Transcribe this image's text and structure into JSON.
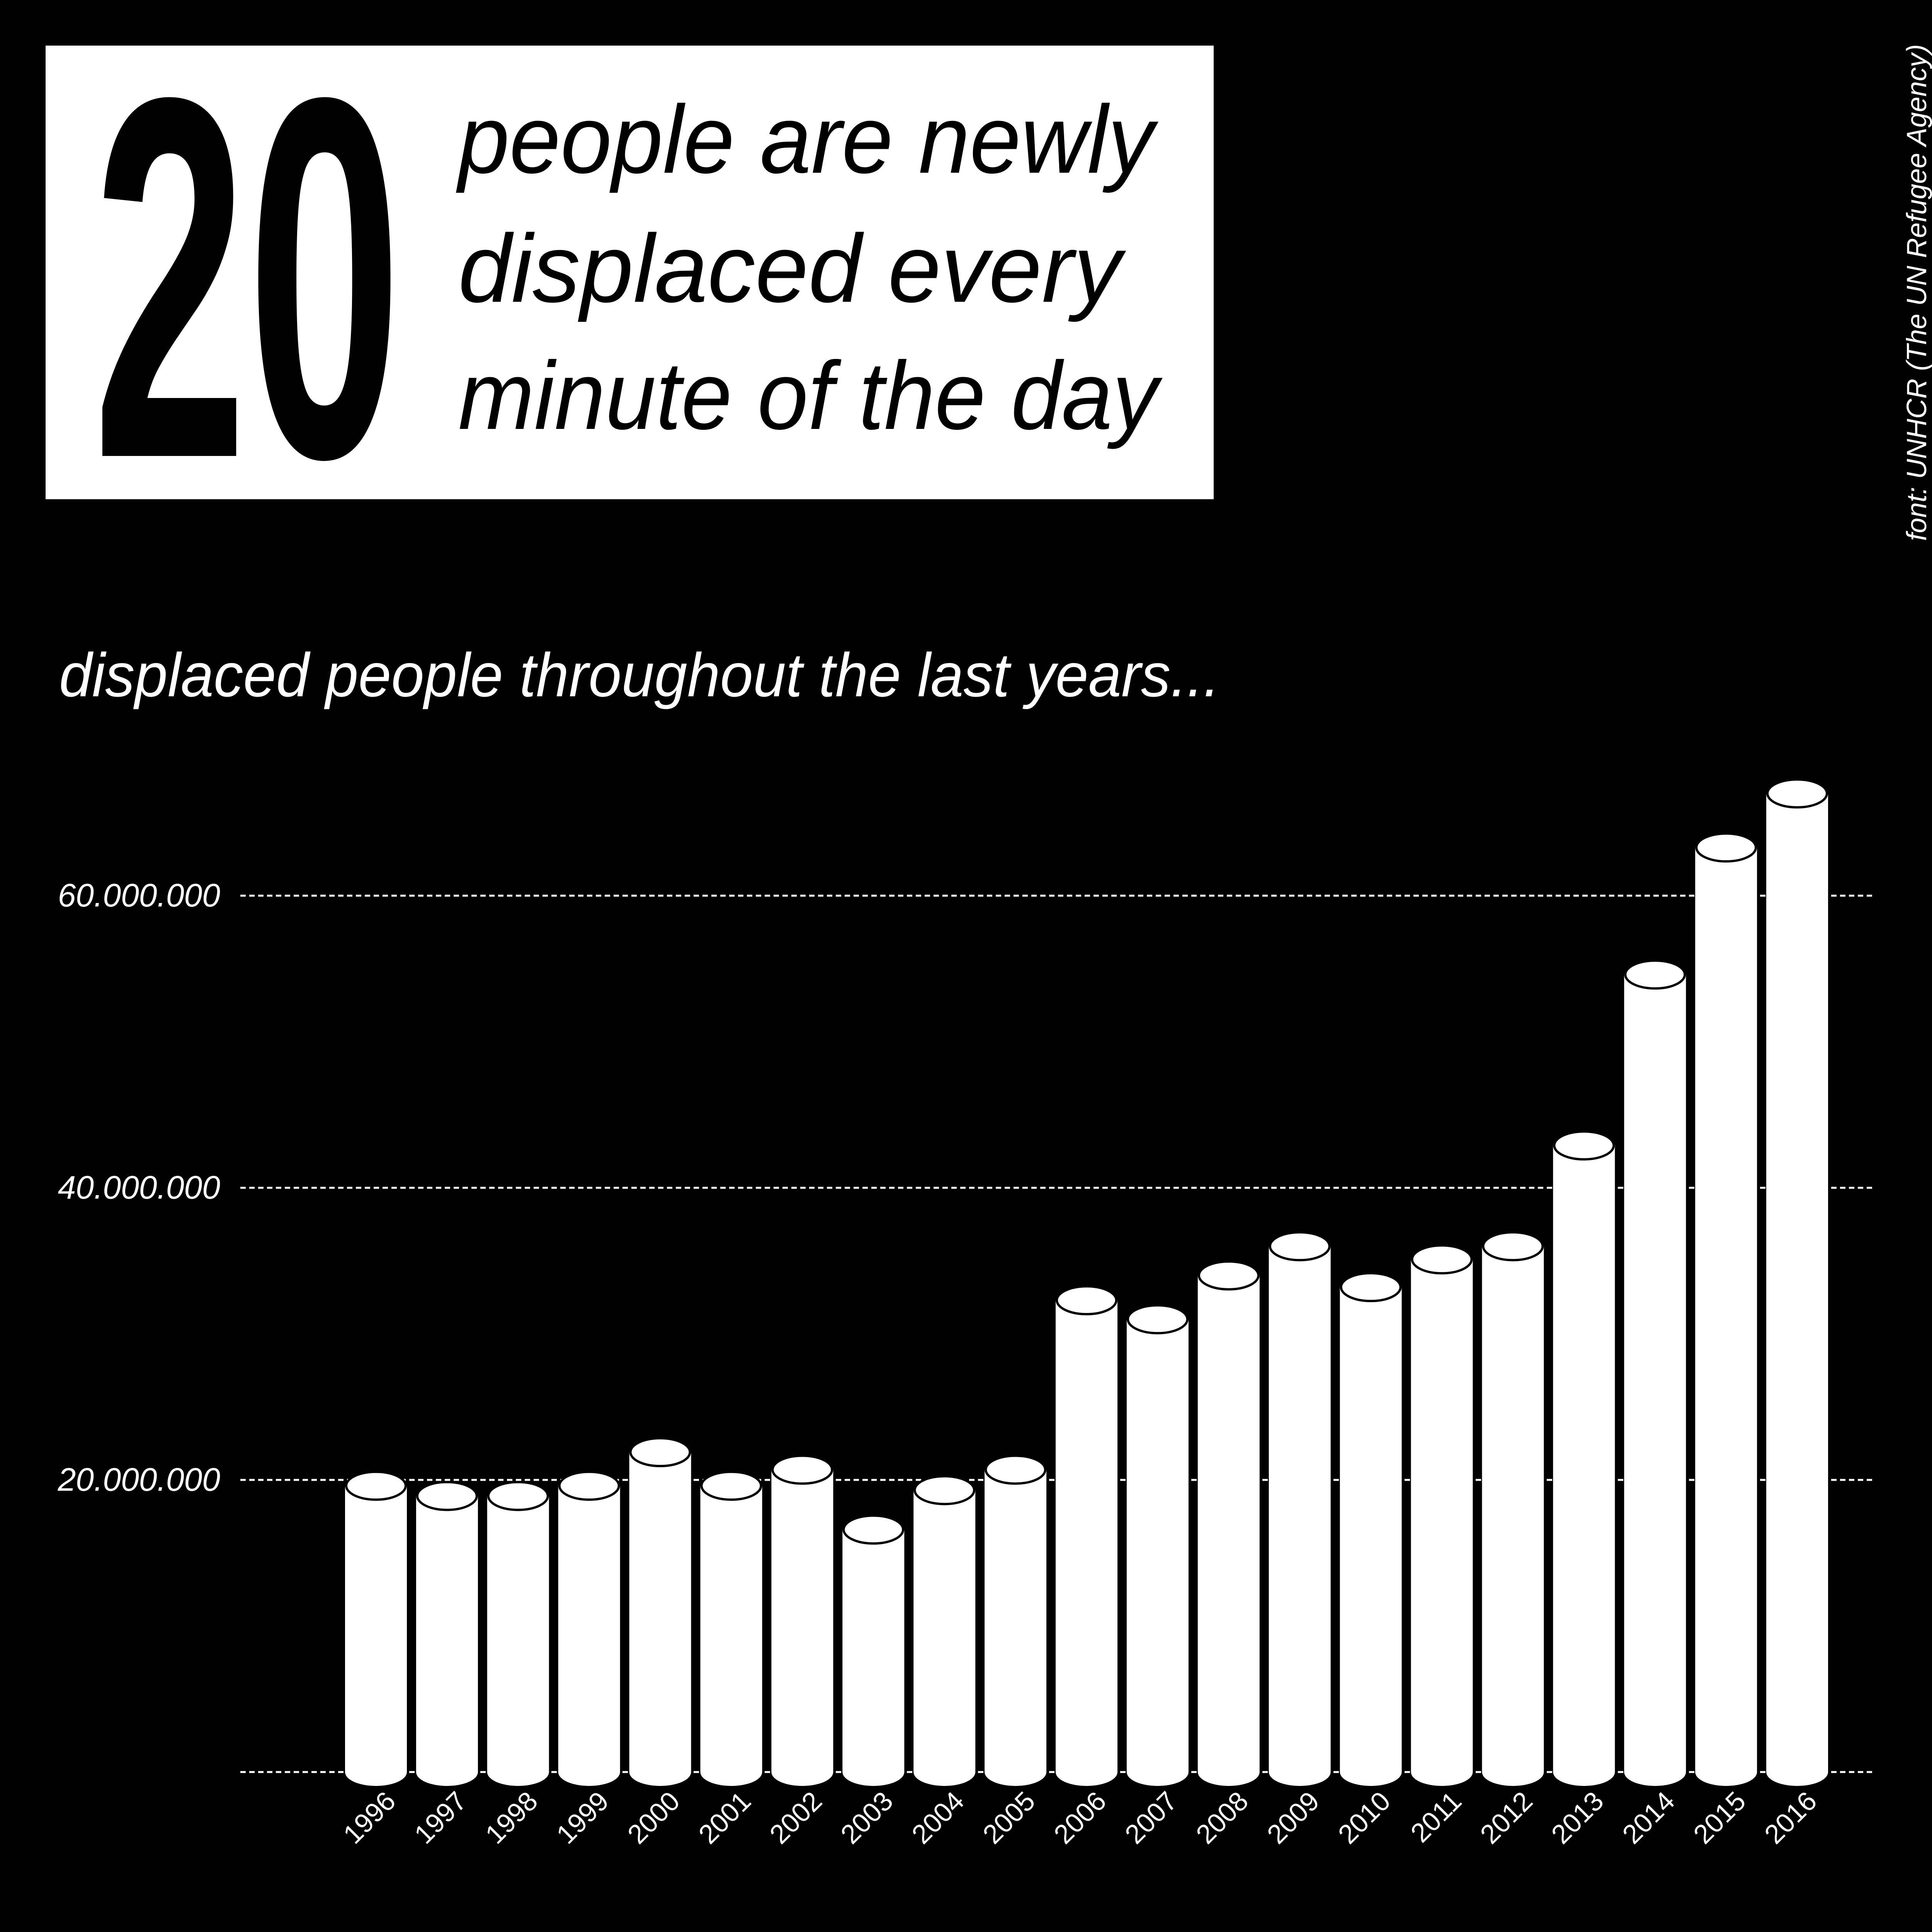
{
  "header": {
    "number": "20",
    "lines": [
      "people are newly",
      "displaced every",
      "minute of the day"
    ]
  },
  "source": "font: UNHCR (The UN Refugee Agency)",
  "chart_data": {
    "type": "bar",
    "title": "displaced people throughout the last years...",
    "categories": [
      "1996",
      "1997",
      "1998",
      "1999",
      "2000",
      "2001",
      "2002",
      "2003",
      "2004",
      "2005",
      "2006",
      "2007",
      "2008",
      "2009",
      "2010",
      "2011",
      "2012",
      "2013",
      "2014",
      "2015",
      "2016"
    ],
    "values": [
      19600000,
      18900000,
      18900000,
      19600000,
      21900000,
      19600000,
      20700000,
      16600000,
      19300000,
      20700000,
      32300000,
      31000000,
      34000000,
      36000000,
      33200000,
      35100000,
      36000000,
      42900000,
      54600000,
      63300000,
      67000000
    ],
    "color": "#ffffff",
    "ylim": [
      0,
      70000000
    ],
    "yticks": [
      {
        "value": 20000000,
        "label": "20.000.000"
      },
      {
        "value": 40000000,
        "label": "40.000.000"
      },
      {
        "value": 60000000,
        "label": "60.000.000"
      }
    ],
    "grid": true
  }
}
